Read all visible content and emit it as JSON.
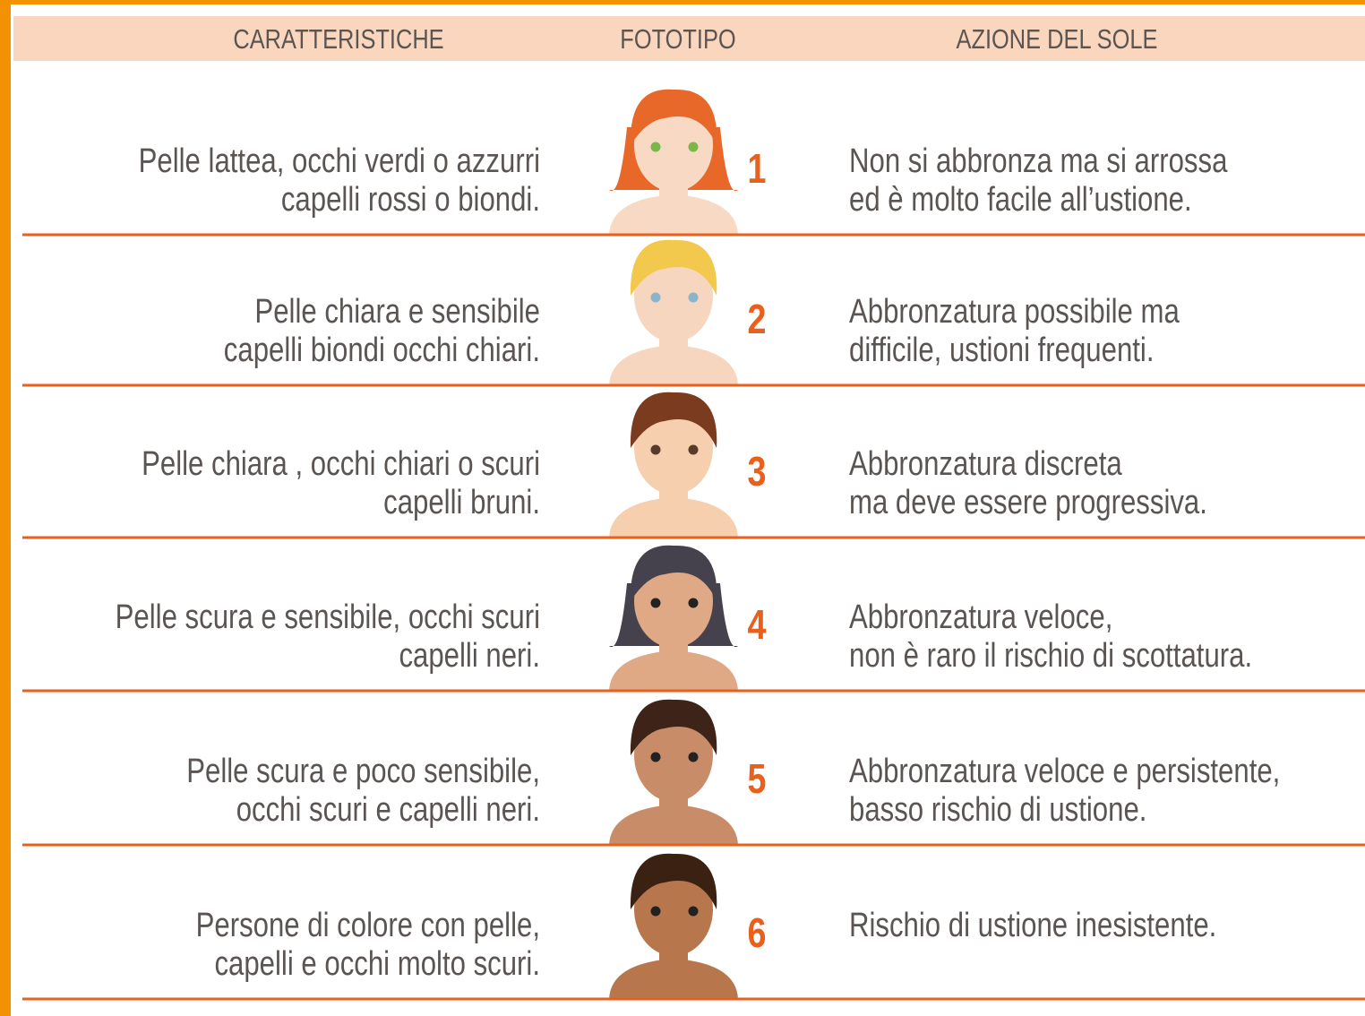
{
  "header": {
    "columns": [
      "CARATTERISTICHE",
      "FOTOTIPO",
      "AZIONE DEL SOLE"
    ]
  },
  "rows": [
    {
      "characteristics": [
        "Pelle lattea, occhi verdi o azzurri",
        "capelli rossi o biondi."
      ],
      "phototype": "1",
      "sun_action": [
        "Non si abbronza ma si arrossa",
        "ed è molto facile all’ustione."
      ]
    },
    {
      "characteristics": [
        "Pelle chiara e sensibile",
        "capelli biondi occhi chiari."
      ],
      "phototype": "2",
      "sun_action": [
        "Abbronzatura possibile ma",
        "difficile, ustioni frequenti."
      ]
    },
    {
      "characteristics": [
        "Pelle chiara , occhi chiari o scuri",
        "capelli bruni."
      ],
      "phototype": "3",
      "sun_action": [
        "Abbronzatura discreta",
        "ma deve essere progressiva."
      ]
    },
    {
      "characteristics": [
        "Pelle scura e sensibile, occhi scuri",
        "capelli neri."
      ],
      "phototype": "4",
      "sun_action": [
        "Abbronzatura veloce,",
        "non è raro il rischio di scottatura."
      ]
    },
    {
      "characteristics": [
        "Pelle scura e poco sensibile,",
        "occhi scuri e capelli neri."
      ],
      "phototype": "5",
      "sun_action": [
        "Abbronzatura veloce e persistente,",
        "basso rischio di ustione."
      ]
    },
    {
      "characteristics": [
        "Persone di colore con pelle,",
        "capelli e occhi molto scuri."
      ],
      "phototype": "6",
      "sun_action": [
        "Rischio di ustione inesistente."
      ]
    }
  ]
}
